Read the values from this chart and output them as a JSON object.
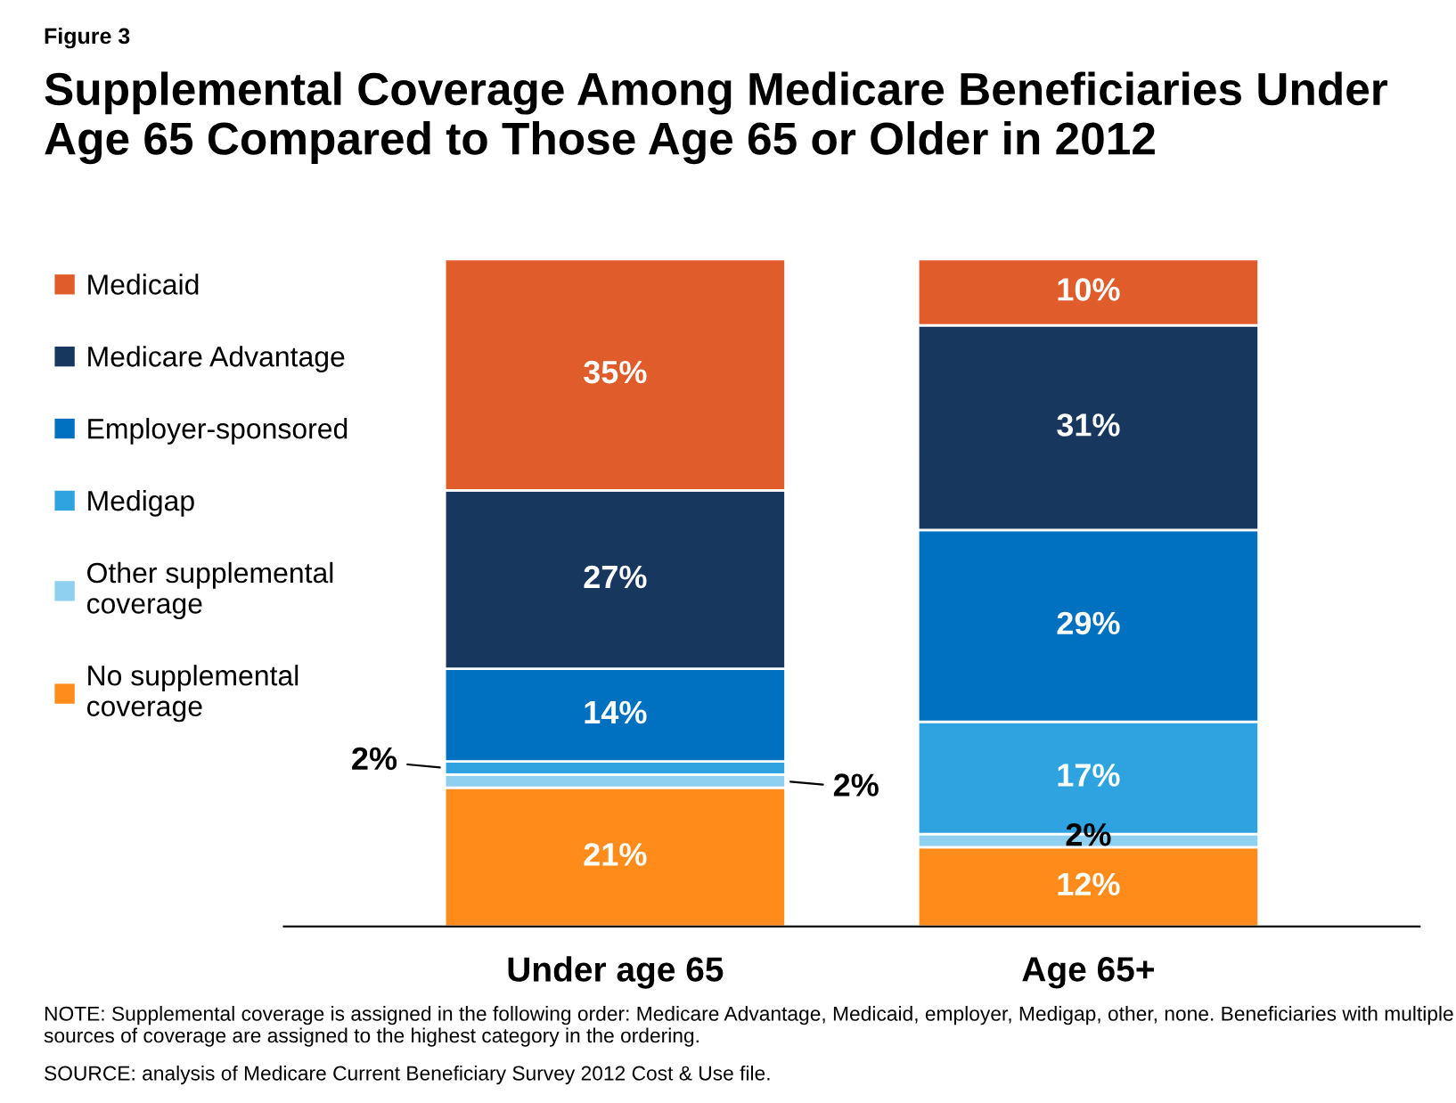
{
  "chart_data": {
    "type": "bar",
    "stacked": true,
    "title": "Supplemental Coverage Among Medicare Beneficiaries Under Age 65 Compared to Those Age 65 or Older in 2012",
    "categories": [
      "Under age 65",
      "Age 65+"
    ],
    "series": [
      {
        "name": "No supplemental coverage",
        "color": "#ff8c1a",
        "values": [
          21,
          12
        ],
        "value_labels": [
          "21%",
          "12%"
        ]
      },
      {
        "name": "Other supplemental coverage",
        "color": "#8fd0f0",
        "values": [
          2,
          2
        ],
        "value_labels": [
          "2%",
          "2%"
        ]
      },
      {
        "name": "Medigap",
        "color": "#2ea3e0",
        "values": [
          2,
          17
        ],
        "value_labels": [
          "2%",
          "17%"
        ]
      },
      {
        "name": "Employer-sponsored",
        "color": "#0070c0",
        "values": [
          14,
          29
        ],
        "value_labels": [
          "14%",
          "29%"
        ]
      },
      {
        "name": "Medicare Advantage",
        "color": "#17375e",
        "values": [
          27,
          31
        ],
        "value_labels": [
          "27%",
          "31%"
        ]
      },
      {
        "name": "Medicaid",
        "color": "#e05c2a",
        "values": [
          35,
          10
        ],
        "value_labels": [
          "35%",
          "10%"
        ]
      }
    ],
    "legend": "left",
    "annotations": [
      "Figure 3",
      "NOTE: Supplemental coverage is assigned in the following order: Medicare Advantage, Medicaid, employer, Medigap, other, none. Beneficiaries with multiple sources of coverage are assigned to the highest category in the ordering.",
      "SOURCE: analysis of Medicare Current Beneficiary Survey 2012 Cost & Use file."
    ]
  }
}
